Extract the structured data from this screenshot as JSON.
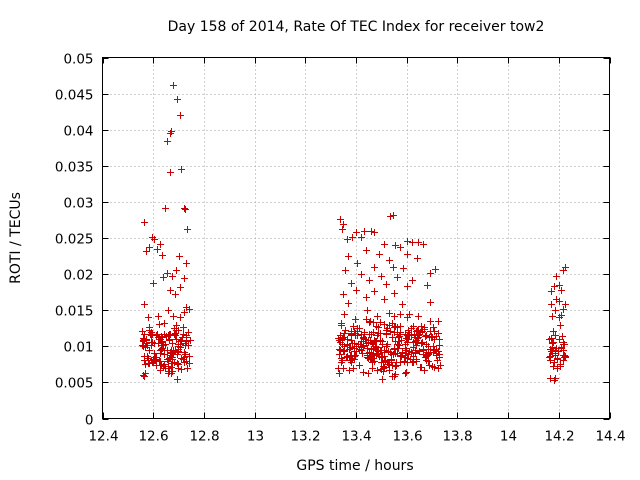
{
  "chart_data": {
    "type": "scatter",
    "title": "Day 158 of 2014, Rate Of TEC Index for receiver tow2",
    "xlabel": "GPS time / hours",
    "ylabel": "ROTI / TECUs",
    "xlim": [
      12.4,
      14.4
    ],
    "ylim": [
      0,
      0.05
    ],
    "xticks": [
      "12.4",
      "12.6",
      "12.8",
      "13",
      "13.2",
      "13.4",
      "13.6",
      "13.8",
      "14",
      "14.2",
      "14.4"
    ],
    "yticks": [
      "0",
      "0.005",
      "0.01",
      "0.015",
      "0.02",
      "0.025",
      "0.03",
      "0.035",
      "0.04",
      "0.045",
      "0.05"
    ],
    "grid": true,
    "marker": "+",
    "color": "#cc0000",
    "clusters": [
      {
        "name": "cluster-1",
        "x_range": [
          12.555,
          12.745
        ],
        "points": [
          [
            12.68,
            0.0462
          ],
          [
            12.695,
            0.0443
          ],
          [
            12.705,
            0.042
          ],
          [
            12.67,
            0.0398
          ],
          [
            12.665,
            0.0396
          ],
          [
            12.655,
            0.0384
          ],
          [
            12.71,
            0.0345
          ],
          [
            12.665,
            0.0342
          ],
          [
            12.72,
            0.0292
          ],
          [
            12.645,
            0.0292
          ],
          [
            12.725,
            0.029
          ],
          [
            12.565,
            0.0272
          ],
          [
            12.735,
            0.0262
          ],
          [
            12.595,
            0.0252
          ],
          [
            12.605,
            0.0248
          ],
          [
            12.625,
            0.0242
          ],
          [
            12.585,
            0.0238
          ],
          [
            12.615,
            0.0235
          ],
          [
            12.57,
            0.0232
          ],
          [
            12.635,
            0.0226
          ],
          [
            12.7,
            0.0225
          ],
          [
            12.73,
            0.0215
          ],
          [
            12.655,
            0.0202
          ],
          [
            12.675,
            0.0198
          ],
          [
            12.69,
            0.0205
          ],
          [
            12.72,
            0.0195
          ],
          [
            12.64,
            0.0196
          ],
          [
            12.6,
            0.0188
          ],
          [
            12.705,
            0.0182
          ],
          [
            12.665,
            0.0178
          ],
          [
            12.685,
            0.0172
          ],
          [
            12.565,
            0.0158
          ],
          [
            12.73,
            0.0155
          ],
          [
            12.74,
            0.0152
          ],
          [
            12.66,
            0.015
          ],
          [
            12.72,
            0.0148
          ],
          [
            12.62,
            0.0142
          ],
          [
            12.68,
            0.0142
          ],
          [
            12.58,
            0.014
          ],
          [
            12.705,
            0.014
          ]
        ],
        "band": {
          "count": 150,
          "y_range": [
            0.0045,
            0.0145
          ]
        }
      },
      {
        "name": "cluster-2",
        "x_range": [
          13.33,
          13.73
        ],
        "points": [
          [
            13.335,
            0.0277
          ],
          [
            13.535,
            0.0281
          ],
          [
            13.545,
            0.0282
          ],
          [
            13.35,
            0.027
          ],
          [
            13.345,
            0.0262
          ],
          [
            13.43,
            0.026
          ],
          [
            13.46,
            0.026
          ],
          [
            13.4,
            0.0258
          ],
          [
            13.42,
            0.0252
          ],
          [
            13.47,
            0.0258
          ],
          [
            13.385,
            0.0252
          ],
          [
            13.365,
            0.0248
          ],
          [
            13.6,
            0.0246
          ],
          [
            13.62,
            0.0244
          ],
          [
            13.645,
            0.0245
          ],
          [
            13.51,
            0.0242
          ],
          [
            13.555,
            0.024
          ],
          [
            13.575,
            0.0238
          ],
          [
            13.665,
            0.0242
          ],
          [
            13.44,
            0.0233
          ],
          [
            13.49,
            0.0228
          ],
          [
            13.37,
            0.0225
          ],
          [
            13.6,
            0.0228
          ],
          [
            13.64,
            0.0222
          ],
          [
            13.53,
            0.022
          ],
          [
            13.405,
            0.0215
          ],
          [
            13.47,
            0.021
          ],
          [
            13.545,
            0.021
          ],
          [
            13.355,
            0.0205
          ],
          [
            13.585,
            0.0208
          ],
          [
            13.71,
            0.0207
          ],
          [
            13.69,
            0.0202
          ],
          [
            13.42,
            0.02
          ],
          [
            13.5,
            0.0198
          ],
          [
            13.56,
            0.0196
          ],
          [
            13.45,
            0.0192
          ],
          [
            13.62,
            0.0192
          ],
          [
            13.38,
            0.0188
          ],
          [
            13.52,
            0.0186
          ],
          [
            13.6,
            0.0184
          ],
          [
            13.68,
            0.0185
          ],
          [
            13.4,
            0.0178
          ],
          [
            13.47,
            0.0176
          ],
          [
            13.55,
            0.0174
          ],
          [
            13.35,
            0.0172
          ],
          [
            13.44,
            0.0168
          ],
          [
            13.51,
            0.0166
          ],
          [
            13.69,
            0.0162
          ],
          [
            13.37,
            0.016
          ],
          [
            13.58,
            0.0158
          ]
        ],
        "band": {
          "count": 330,
          "y_range": [
            0.0045,
            0.0155
          ]
        }
      },
      {
        "name": "cluster-3",
        "x_range": [
          14.16,
          14.23
        ],
        "points": [
          [
            14.225,
            0.021
          ],
          [
            14.215,
            0.0205
          ],
          [
            14.19,
            0.0197
          ],
          [
            14.18,
            0.0183
          ],
          [
            14.2,
            0.0185
          ],
          [
            14.17,
            0.0176
          ],
          [
            14.21,
            0.0178
          ],
          [
            14.19,
            0.0165
          ],
          [
            14.2,
            0.0163
          ],
          [
            14.225,
            0.0158
          ],
          [
            14.17,
            0.0158
          ],
          [
            14.215,
            0.0152
          ],
          [
            14.185,
            0.015
          ],
          [
            14.21,
            0.0144
          ],
          [
            14.175,
            0.0142
          ],
          [
            14.2,
            0.014
          ]
        ],
        "band": {
          "count": 45,
          "y_range": [
            0.0042,
            0.0138
          ]
        }
      }
    ]
  }
}
